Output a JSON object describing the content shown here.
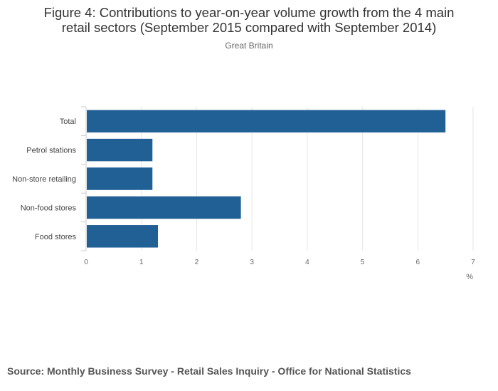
{
  "header": {
    "title_line1": "Figure 4: Contributions to year-on-year volume growth from the 4 main",
    "title_line2": "retail sectors (September 2015 compared with September 2014)",
    "subtitle": "Great Britain"
  },
  "chart_data": {
    "type": "bar",
    "orientation": "horizontal",
    "title": "Figure 4: Contributions to year-on-year volume growth from the 4 main retail sectors (September 2015 compared with September 2014)",
    "subtitle": "Great Britain",
    "categories": [
      "Total",
      "Petrol stations",
      "Non-store retailing",
      "Non-food stores",
      "Food stores"
    ],
    "values": [
      6.5,
      1.2,
      1.2,
      2.8,
      1.3
    ],
    "xlabel": "%",
    "ylabel": "",
    "xlim": [
      0,
      7
    ],
    "xticks": [
      0,
      1,
      2,
      3,
      4,
      5,
      6,
      7
    ],
    "grid": true,
    "bar_color": "#206095",
    "grid_color": "#e6e6e6"
  },
  "footer": {
    "source": "Source: Monthly Business Survey - Retail Sales Inquiry - Office for National Statistics"
  }
}
